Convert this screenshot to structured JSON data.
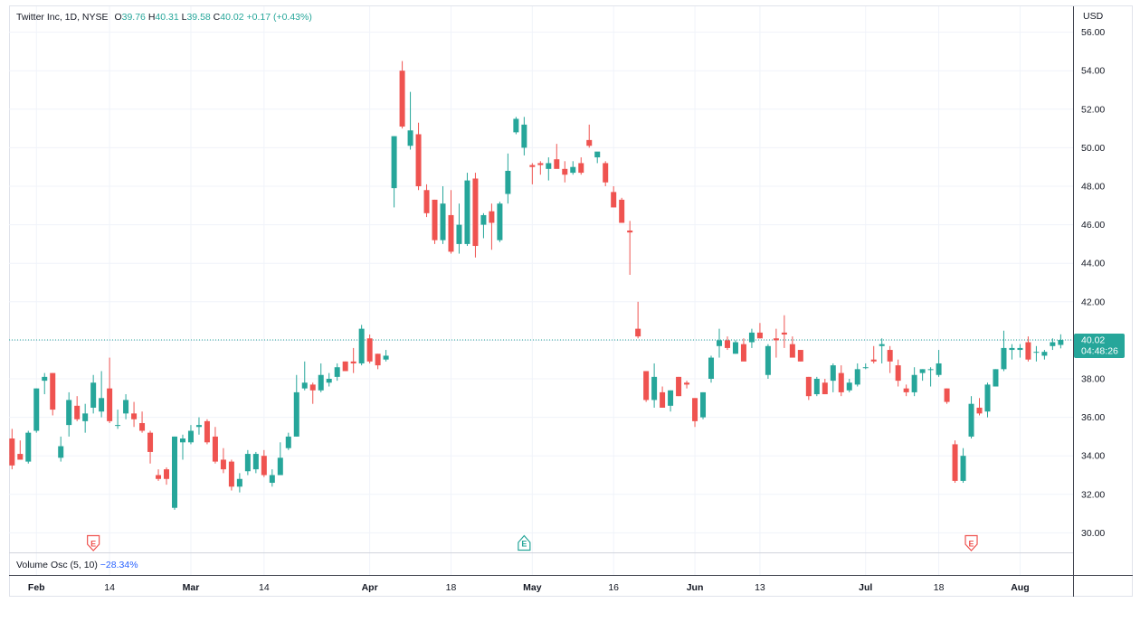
{
  "legend": {
    "symbol": "Twitter Inc, 1D, NYSE",
    "o_label": "O",
    "o_value": "39.76",
    "h_label": "H",
    "h_value": "40.31",
    "l_label": "L",
    "l_value": "39.58",
    "c_label": "C",
    "c_value": "40.02",
    "change": "+0.17 (+0.43%)"
  },
  "currency": "USD",
  "price_tag": {
    "price": "40.02",
    "countdown": "04:48:26"
  },
  "oscillator": {
    "label": "Volume Osc (5, 10)",
    "value": "−28.34%"
  },
  "earnings_marker": "E",
  "colors": {
    "up": "#26a69a",
    "down": "#ef5350",
    "grid": "#f0f3fa",
    "text": "#131722"
  },
  "chart_data": {
    "type": "candlestick",
    "ylim": [
      29,
      57
    ],
    "y_ticks": [
      "56.00",
      "54.00",
      "52.00",
      "50.00",
      "48.00",
      "46.00",
      "44.00",
      "42.00",
      "40.00",
      "38.00",
      "36.00",
      "34.00",
      "32.00",
      "30.00"
    ],
    "x_ticks": [
      {
        "label": "Feb",
        "i": 3
      },
      {
        "label": "14",
        "i": 12
      },
      {
        "label": "Mar",
        "i": 22
      },
      {
        "label": "14",
        "i": 31
      },
      {
        "label": "Apr",
        "i": 44
      },
      {
        "label": "18",
        "i": 54
      },
      {
        "label": "May",
        "i": 64
      },
      {
        "label": "16",
        "i": 74
      },
      {
        "label": "Jun",
        "i": 84
      },
      {
        "label": "13",
        "i": 92
      },
      {
        "label": "Jul",
        "i": 105
      },
      {
        "label": "18",
        "i": 114
      },
      {
        "label": "Aug",
        "i": 124
      }
    ],
    "earnings": [
      {
        "i": 10,
        "type": "down"
      },
      {
        "i": 63,
        "type": "up"
      },
      {
        "i": 118,
        "type": "down"
      }
    ],
    "candles": [
      [
        34.9,
        35.4,
        33.3,
        33.5
      ],
      [
        34.1,
        34.8,
        33.8,
        33.8
      ],
      [
        33.7,
        35.3,
        33.6,
        35.2
      ],
      [
        35.3,
        37.5,
        35.2,
        37.5
      ],
      [
        37.9,
        38.3,
        37.2,
        38.1
      ],
      [
        38.3,
        38.3,
        36.1,
        36.4
      ],
      [
        33.9,
        35.0,
        33.7,
        34.5
      ],
      [
        35.6,
        37.3,
        35.0,
        36.9
      ],
      [
        36.6,
        37.1,
        35.8,
        35.9
      ],
      [
        35.8,
        36.7,
        35.2,
        36.2
      ],
      [
        36.5,
        38.2,
        36.2,
        37.8
      ],
      [
        36.3,
        38.4,
        36.0,
        37.0
      ],
      [
        37.5,
        39.1,
        35.7,
        35.8
      ],
      [
        35.6,
        36.4,
        35.4,
        35.6
      ],
      [
        36.2,
        37.2,
        35.9,
        36.9
      ],
      [
        36.2,
        36.8,
        35.5,
        35.9
      ],
      [
        35.7,
        36.3,
        35.2,
        35.3
      ],
      [
        35.2,
        35.3,
        33.6,
        34.2
      ],
      [
        33.0,
        33.3,
        32.7,
        32.8
      ],
      [
        33.3,
        33.4,
        32.5,
        32.8
      ],
      [
        31.3,
        35.0,
        31.2,
        35.0
      ],
      [
        34.7,
        35.1,
        33.8,
        34.9
      ],
      [
        34.7,
        35.6,
        34.6,
        35.3
      ],
      [
        35.5,
        36.0,
        35.1,
        35.6
      ],
      [
        35.8,
        35.9,
        34.6,
        34.7
      ],
      [
        35.0,
        35.5,
        33.6,
        33.7
      ],
      [
        33.8,
        34.4,
        33.1,
        33.3
      ],
      [
        33.7,
        33.8,
        32.2,
        32.4
      ],
      [
        32.4,
        33.1,
        32.1,
        32.8
      ],
      [
        33.2,
        34.3,
        33.0,
        34.1
      ],
      [
        33.3,
        34.2,
        33.1,
        34.1
      ],
      [
        34.0,
        34.3,
        32.9,
        33.0
      ],
      [
        32.6,
        33.3,
        32.4,
        33.0
      ],
      [
        33.0,
        34.7,
        33.0,
        33.9
      ],
      [
        34.4,
        35.2,
        34.3,
        35.0
      ],
      [
        35.0,
        38.2,
        35.0,
        37.3
      ],
      [
        37.5,
        38.9,
        37.4,
        37.8
      ],
      [
        37.7,
        37.8,
        36.7,
        37.4
      ],
      [
        37.4,
        38.8,
        37.3,
        38.2
      ],
      [
        37.8,
        38.3,
        37.6,
        38.0
      ],
      [
        38.1,
        38.8,
        37.9,
        38.6
      ],
      [
        38.9,
        38.9,
        38.4,
        38.4
      ],
      [
        38.9,
        39.6,
        38.3,
        38.8
      ],
      [
        38.8,
        40.8,
        38.7,
        40.6
      ],
      [
        40.1,
        40.3,
        38.8,
        38.9
      ],
      [
        39.3,
        39.3,
        38.5,
        38.7
      ],
      [
        39.0,
        39.5,
        38.9,
        39.2
      ],
      [
        47.9,
        50.6,
        46.9,
        50.6
      ],
      [
        54.0,
        54.5,
        51.0,
        51.1
      ],
      [
        50.1,
        52.9,
        49.9,
        50.9
      ],
      [
        50.7,
        51.3,
        47.8,
        48.0
      ],
      [
        47.8,
        48.1,
        46.4,
        46.6
      ],
      [
        47.3,
        47.3,
        45.0,
        45.2
      ],
      [
        45.2,
        48.0,
        45.0,
        47.1
      ],
      [
        46.5,
        47.8,
        44.5,
        44.6
      ],
      [
        45.0,
        47.1,
        44.5,
        46.0
      ],
      [
        45.0,
        48.7,
        44.9,
        48.3
      ],
      [
        48.4,
        48.7,
        44.3,
        44.9
      ],
      [
        46.0,
        46.6,
        45.3,
        46.5
      ],
      [
        46.7,
        47.1,
        44.7,
        46.1
      ],
      [
        45.2,
        47.2,
        45.1,
        47.1
      ],
      [
        47.6,
        49.7,
        47.1,
        48.8
      ],
      [
        50.8,
        51.6,
        50.7,
        51.5
      ],
      [
        50.0,
        51.6,
        49.6,
        51.2
      ],
      [
        49.1,
        49.2,
        48.1,
        49.0
      ],
      [
        49.2,
        49.3,
        48.6,
        49.1
      ],
      [
        48.9,
        49.5,
        48.3,
        49.2
      ],
      [
        49.4,
        50.2,
        49.0,
        48.9
      ],
      [
        48.9,
        49.3,
        48.2,
        48.6
      ],
      [
        48.7,
        49.3,
        48.6,
        49.0
      ],
      [
        49.2,
        49.5,
        48.6,
        48.7
      ],
      [
        50.4,
        51.2,
        50.0,
        50.1
      ],
      [
        49.5,
        49.7,
        49.2,
        49.8
      ],
      [
        49.2,
        49.3,
        48.0,
        48.2
      ],
      [
        47.7,
        48.0,
        46.9,
        46.9
      ],
      [
        47.3,
        47.4,
        46.1,
        46.1
      ],
      [
        45.7,
        46.2,
        43.4,
        45.6
      ],
      [
        40.6,
        42.0,
        40.1,
        40.2
      ],
      [
        38.4,
        38.4,
        36.8,
        36.9
      ],
      [
        36.9,
        38.8,
        36.5,
        38.1
      ],
      [
        37.3,
        37.6,
        36.5,
        36.5
      ],
      [
        36.6,
        37.4,
        36.3,
        37.4
      ],
      [
        38.1,
        38.1,
        37.1,
        37.1
      ],
      [
        37.8,
        37.9,
        37.5,
        37.7
      ],
      [
        37.0,
        37.0,
        35.5,
        35.8
      ],
      [
        36.0,
        37.3,
        35.9,
        37.3
      ],
      [
        38.0,
        39.2,
        37.8,
        39.1
      ],
      [
        39.7,
        40.6,
        39.1,
        40.0
      ],
      [
        40.0,
        40.2,
        39.5,
        39.6
      ],
      [
        39.3,
        40.0,
        39.3,
        39.9
      ],
      [
        39.8,
        40.1,
        39.1,
        38.9
      ],
      [
        39.9,
        40.6,
        39.6,
        40.4
      ],
      [
        40.4,
        40.9,
        40.1,
        40.1
      ],
      [
        38.2,
        39.8,
        38.0,
        39.7
      ],
      [
        40.1,
        40.6,
        39.1,
        40.0
      ],
      [
        40.4,
        41.3,
        39.6,
        40.3
      ],
      [
        39.8,
        40.2,
        39.2,
        39.1
      ],
      [
        39.5,
        39.5,
        38.9,
        38.9
      ],
      [
        38.1,
        38.1,
        36.9,
        37.1
      ],
      [
        37.2,
        38.1,
        37.1,
        38.0
      ],
      [
        37.8,
        38.0,
        37.2,
        37.2
      ],
      [
        37.9,
        38.8,
        37.3,
        38.7
      ],
      [
        38.3,
        38.7,
        37.1,
        37.3
      ],
      [
        37.4,
        38.0,
        37.3,
        37.8
      ],
      [
        37.7,
        38.8,
        37.6,
        38.5
      ],
      [
        38.6,
        38.8,
        38.5,
        38.6
      ],
      [
        39.0,
        39.7,
        38.8,
        38.9
      ],
      [
        39.7,
        40.1,
        38.8,
        39.8
      ],
      [
        39.5,
        39.7,
        38.3,
        38.9
      ],
      [
        38.7,
        39.0,
        37.6,
        37.9
      ],
      [
        37.5,
        37.7,
        37.1,
        37.3
      ],
      [
        37.3,
        38.6,
        37.1,
        38.2
      ],
      [
        38.3,
        38.5,
        37.9,
        38.5
      ],
      [
        38.5,
        38.6,
        37.6,
        38.5
      ],
      [
        38.2,
        39.5,
        38.1,
        38.8
      ],
      [
        37.5,
        37.5,
        36.7,
        36.8
      ],
      [
        34.6,
        34.8,
        32.6,
        32.7
      ],
      [
        32.7,
        34.4,
        32.6,
        34.0
      ],
      [
        35.0,
        37.1,
        34.9,
        36.7
      ],
      [
        36.5,
        37.0,
        36.1,
        36.2
      ],
      [
        36.3,
        37.8,
        36.0,
        37.7
      ],
      [
        37.6,
        38.5,
        37.6,
        38.5
      ],
      [
        38.5,
        40.5,
        38.4,
        39.6
      ],
      [
        39.5,
        39.8,
        39.0,
        39.6
      ],
      [
        39.5,
        39.8,
        39.1,
        39.6
      ],
      [
        39.9,
        40.2,
        38.9,
        39.0
      ],
      [
        39.4,
        39.7,
        38.9,
        39.4
      ],
      [
        39.2,
        39.5,
        39.0,
        39.4
      ],
      [
        39.7,
        40.1,
        39.5,
        39.9
      ],
      [
        39.76,
        40.31,
        39.58,
        40.02
      ]
    ]
  }
}
